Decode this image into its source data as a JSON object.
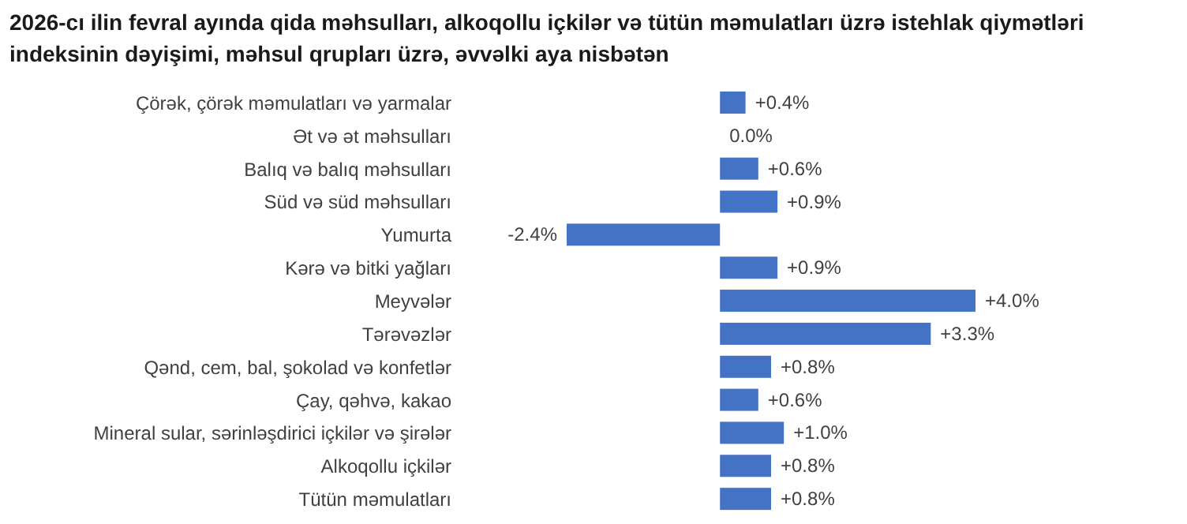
{
  "chart_data": {
    "type": "bar",
    "orientation": "horizontal",
    "title": "2026-cı ilin fevral ayında qida məhsulları, alkoqollu içkilər və tütün məmulatları üzrə istehlak qiymətləri indeksinin dəyişimi, məhsul qrupları üzrə, əvvəlki aya nisbətən",
    "categories": [
      "Çörək, çörək məmulatları və yarmalar",
      "Ət və ət məhsulları",
      "Balıq və balıq məhsulları",
      "Süd və süd məhsulları",
      "Yumurta",
      "Kərə və bitki yağları",
      "Meyvələr",
      "Tərəvəzlər",
      "Qənd, cem, bal, şokolad və konfetlər",
      "Çay, qəhvə, kakao",
      "Mineral sular, sərinləşdirici içkilər və şirələr",
      "Alkoqollu içkilər",
      "Tütün məmulatları"
    ],
    "values": [
      0.4,
      0.0,
      0.6,
      0.9,
      -2.4,
      0.9,
      4.0,
      3.3,
      0.8,
      0.6,
      1.0,
      0.8,
      0.8
    ],
    "value_labels": [
      "+0.4%",
      "0.0%",
      "+0.6%",
      "+0.9%",
      "-2.4%",
      "+0.9%",
      "+4.0%",
      "+3.3%",
      "+0.8%",
      "+0.6%",
      "+1.0%",
      "+0.8%",
      "+0.8%"
    ],
    "color": "#4472c4"
  }
}
